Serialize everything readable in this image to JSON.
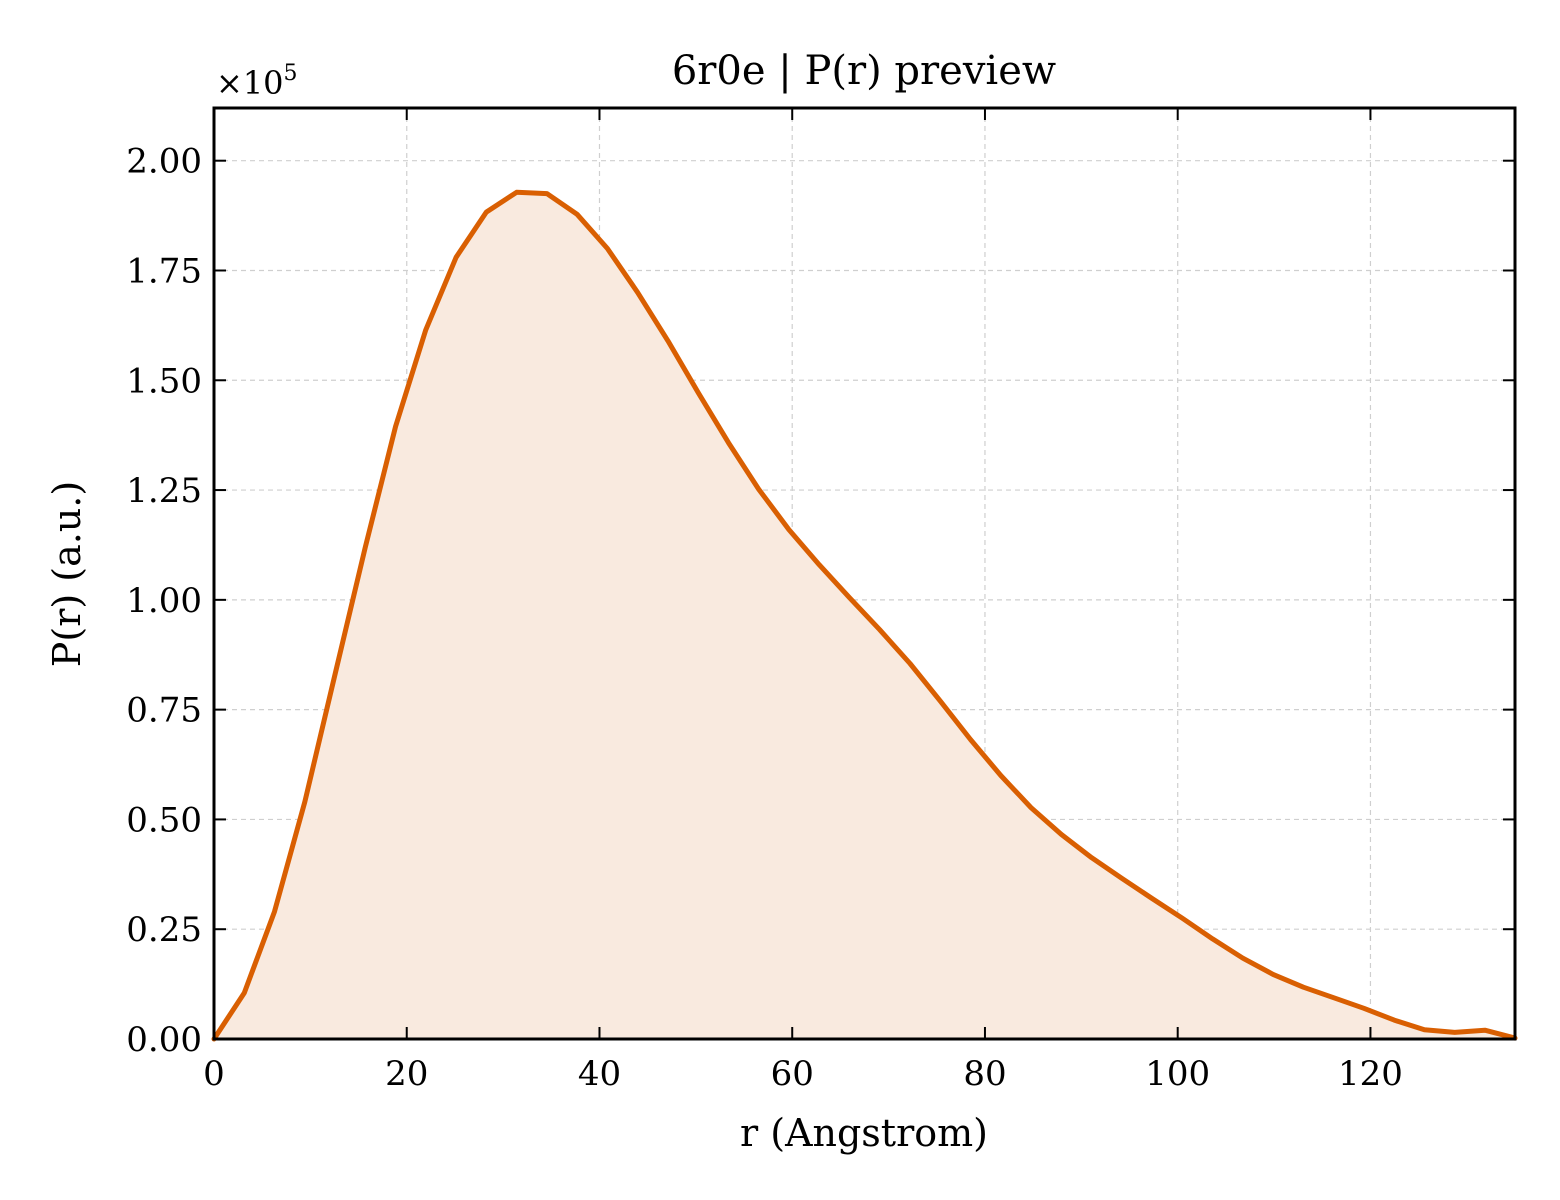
{
  "chart_data": {
    "type": "area",
    "title": "6r0e | P(r) preview",
    "xlabel": "r (Angstrom)",
    "ylabel": "P(r) (a.u.)",
    "y_offset_label": "×10",
    "y_offset_exponent": "5",
    "xlim": [
      0,
      135
    ],
    "ylim": [
      0,
      2.12
    ],
    "x_ticks": [
      0,
      20,
      40,
      60,
      80,
      100,
      120
    ],
    "x_tick_labels": [
      "0",
      "20",
      "40",
      "60",
      "80",
      "100",
      "120"
    ],
    "y_ticks": [
      0,
      0.25,
      0.5,
      0.75,
      1.0,
      1.25,
      1.5,
      1.75,
      2.0
    ],
    "y_tick_labels": [
      "0.00",
      "0.25",
      "0.50",
      "0.75",
      "1.00",
      "1.25",
      "1.50",
      "1.75",
      "2.00"
    ],
    "grid": true,
    "colors": {
      "line": "#d95f02",
      "fill": "#f9eadf"
    },
    "series": [
      {
        "x": [
          0,
          3.14,
          6.28,
          9.42,
          12.56,
          15.7,
          18.84,
          21.98,
          25.12,
          28.26,
          31.4,
          34.54,
          37.68,
          40.82,
          43.96,
          47.1,
          50.24,
          53.38,
          56.52,
          59.66,
          62.8,
          65.94,
          69.08,
          72.22,
          75.36,
          78.5,
          81.64,
          84.78,
          87.92,
          91.06,
          94.2,
          97.34,
          100.48,
          103.62,
          106.76,
          109.9,
          113.04,
          116.18,
          119.32,
          122.46,
          125.6,
          128.74,
          131.88,
          135
        ],
        "values": [
          0,
          0.105,
          0.29,
          0.54,
          0.83,
          1.12,
          1.395,
          1.615,
          1.78,
          1.883,
          1.928,
          1.925,
          1.878,
          1.8,
          1.7,
          1.59,
          1.472,
          1.358,
          1.252,
          1.16,
          1.08,
          1.005,
          0.932,
          0.855,
          0.77,
          0.682,
          0.6,
          0.527,
          0.466,
          0.413,
          0.366,
          0.32,
          0.275,
          0.228,
          0.184,
          0.147,
          0.118,
          0.094,
          0.07,
          0.043,
          0.021,
          0.015,
          0.02,
          0.002
        ]
      }
    ]
  }
}
